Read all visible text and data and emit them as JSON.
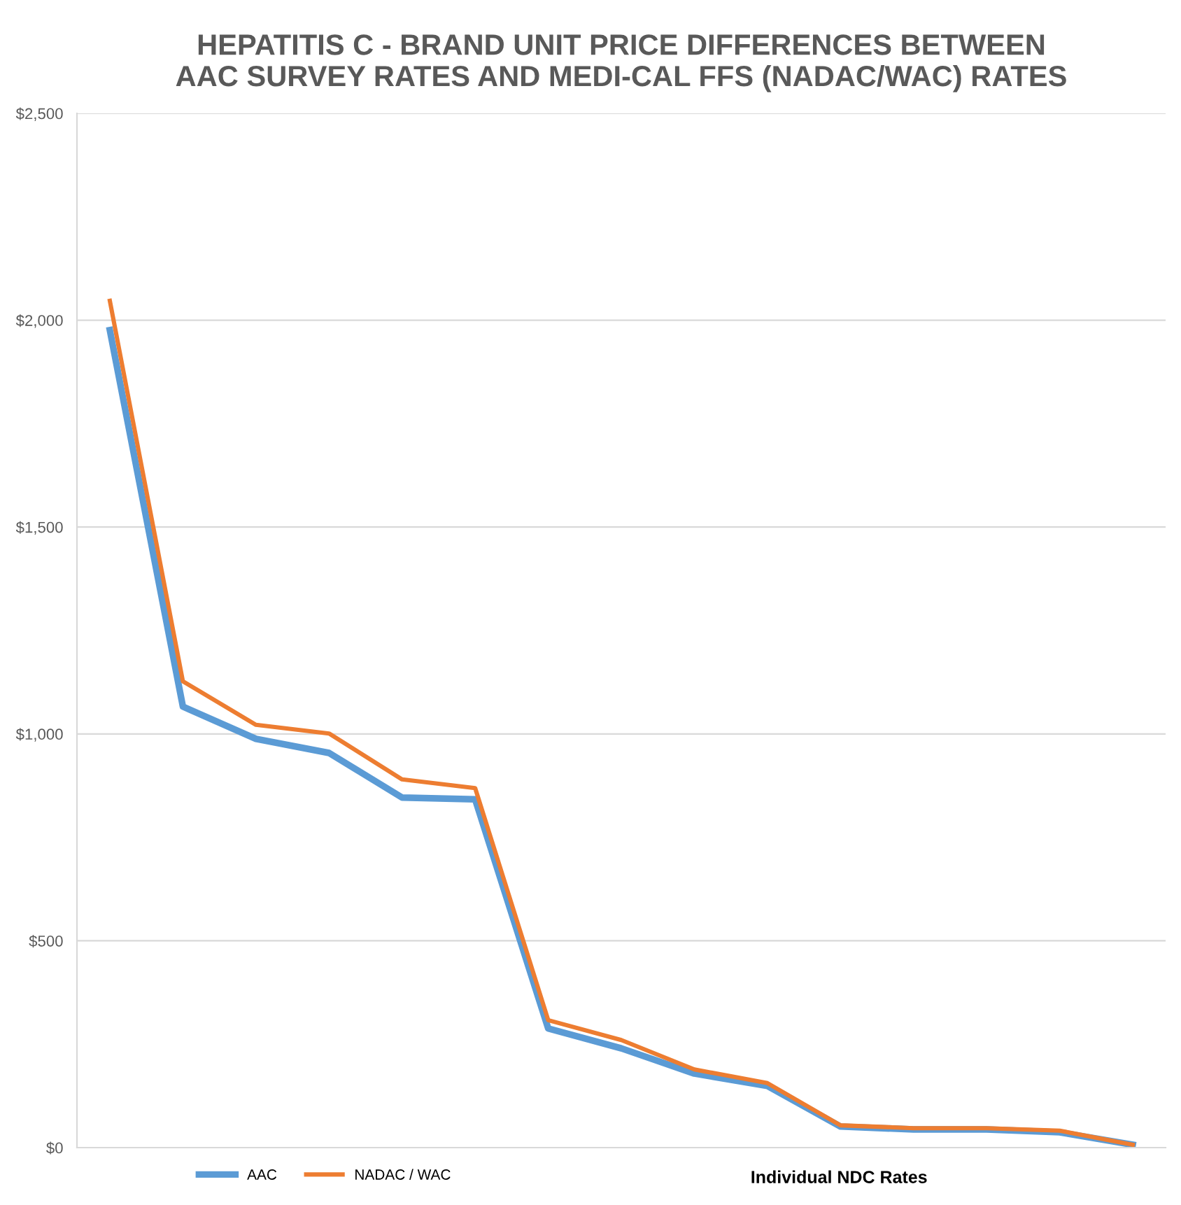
{
  "chart_data": {
    "type": "line",
    "title": "HEPATITIS C - BRAND UNIT PRICE DIFFERENCES BETWEEN\nAAC SURVEY RATES AND MEDI-CAL FFS (NADAC/WAC) RATES",
    "xlabel": "Individual NDC Rates",
    "categories": [
      null,
      null,
      null,
      null,
      null,
      null,
      null,
      null,
      null,
      null,
      null,
      null,
      null,
      null,
      null
    ],
    "series": [
      {
        "name": "AAC",
        "color": "#5b9bd5",
        "values": [
          1976,
          1066,
          988,
          954,
          846,
          842,
          288,
          240,
          179,
          149,
          51,
          44,
          44,
          37,
          7
        ]
      },
      {
        "name": "NADAC / WAC",
        "color": "#ed7d31",
        "values": [
          2047,
          1127,
          1022,
          1001,
          890,
          869,
          308,
          260,
          189,
          156,
          54,
          47,
          47,
          41,
          7
        ]
      }
    ],
    "ylim": [
      0,
      2500
    ],
    "yticks": [
      {
        "value": 0,
        "label": "$0"
      },
      {
        "value": 500,
        "label": "$500"
      },
      {
        "value": 1000,
        "label": "$1,000"
      },
      {
        "value": 1500,
        "label": "$1,500"
      },
      {
        "value": 2000,
        "label": "$2,000"
      },
      {
        "value": 2500,
        "label": "$2,500"
      }
    ],
    "grid": "y",
    "legend": "bottom",
    "marker": "none",
    "line_style": "solid"
  }
}
